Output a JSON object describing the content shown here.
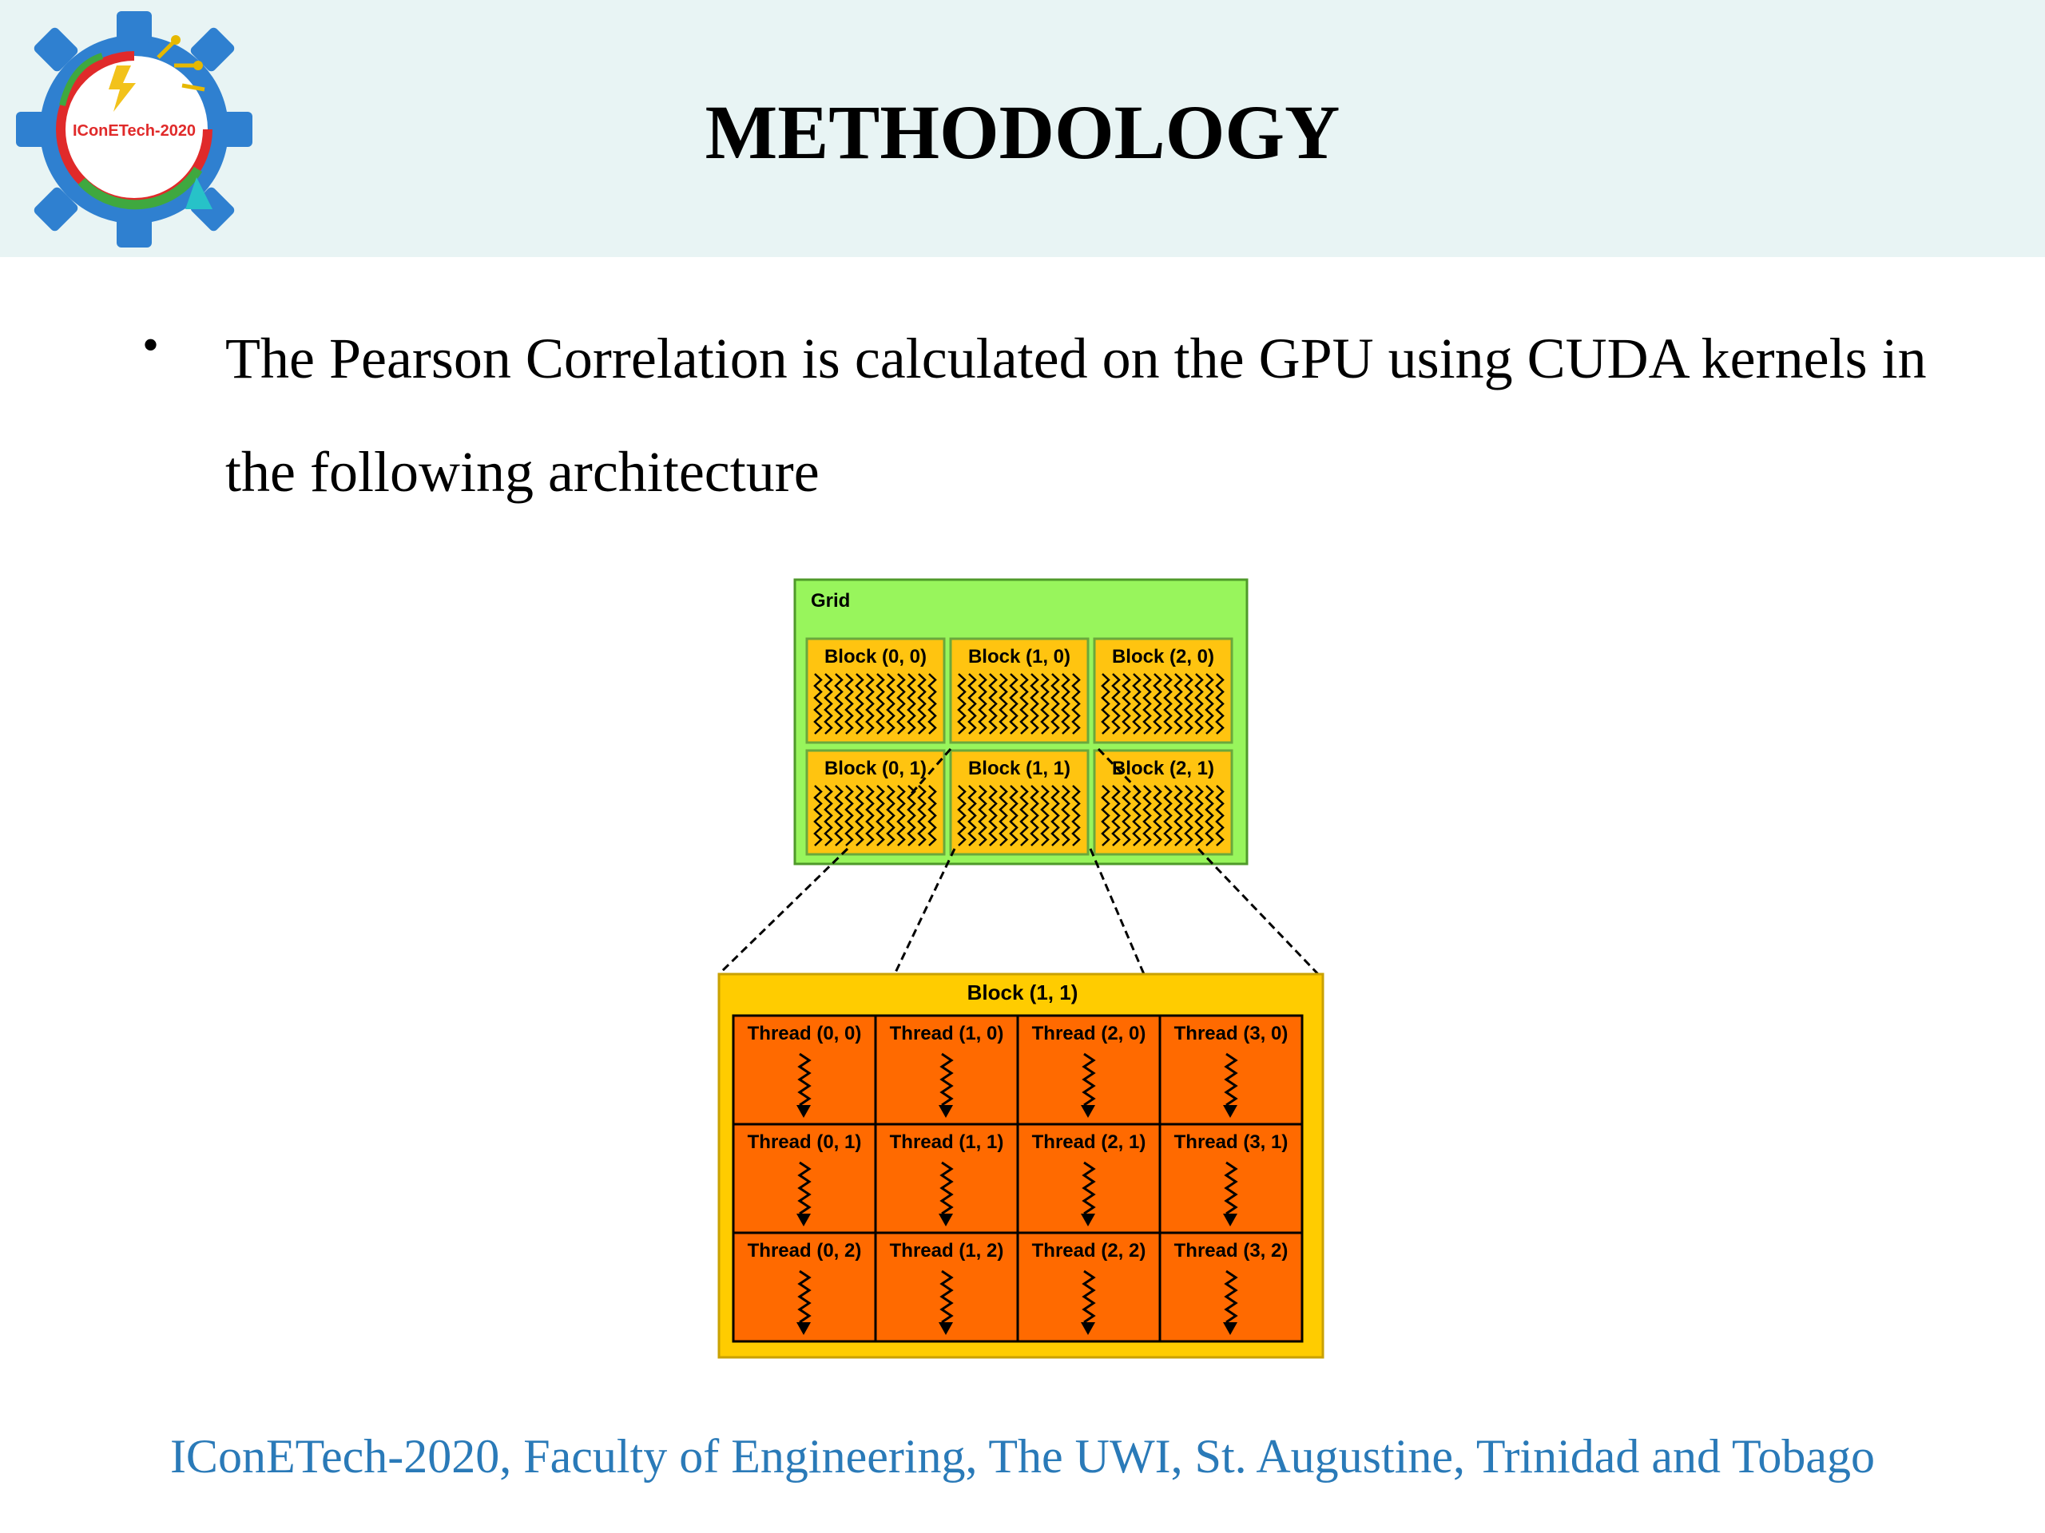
{
  "header": {
    "title": "METHODOLOGY",
    "logo_text": "IConETech-2020",
    "icon": "gear-logo-icon"
  },
  "bullets": [
    {
      "text": "The Pearson Correlation is calculated on the GPU using CUDA kernels in the following architecture"
    }
  ],
  "diagram": {
    "grid_label": "Grid",
    "blocks": [
      [
        "Block (0, 0)",
        "Block (1, 0)",
        "Block (2, 0)"
      ],
      [
        "Block (0, 1)",
        "Block (1, 1)",
        "Block (2, 1)"
      ]
    ],
    "detail_label": "Block (1, 1)",
    "threads": [
      [
        "Thread (0, 0)",
        "Thread (1, 0)",
        "Thread (2, 0)",
        "Thread (3, 0)"
      ],
      [
        "Thread (0, 1)",
        "Thread (1, 1)",
        "Thread (2, 1)",
        "Thread (3, 1)"
      ],
      [
        "Thread (0, 2)",
        "Thread (1, 2)",
        "Thread (2, 2)",
        "Thread (3, 2)"
      ]
    ],
    "colors": {
      "grid": "#98f55c",
      "block": "#ffc410",
      "detail": "#ffcc00",
      "thread": "#ff6a00"
    }
  },
  "footer": {
    "text": "IConETech-2020, Faculty of Engineering, The UWI, St. Augustine, Trinidad and Tobago"
  }
}
